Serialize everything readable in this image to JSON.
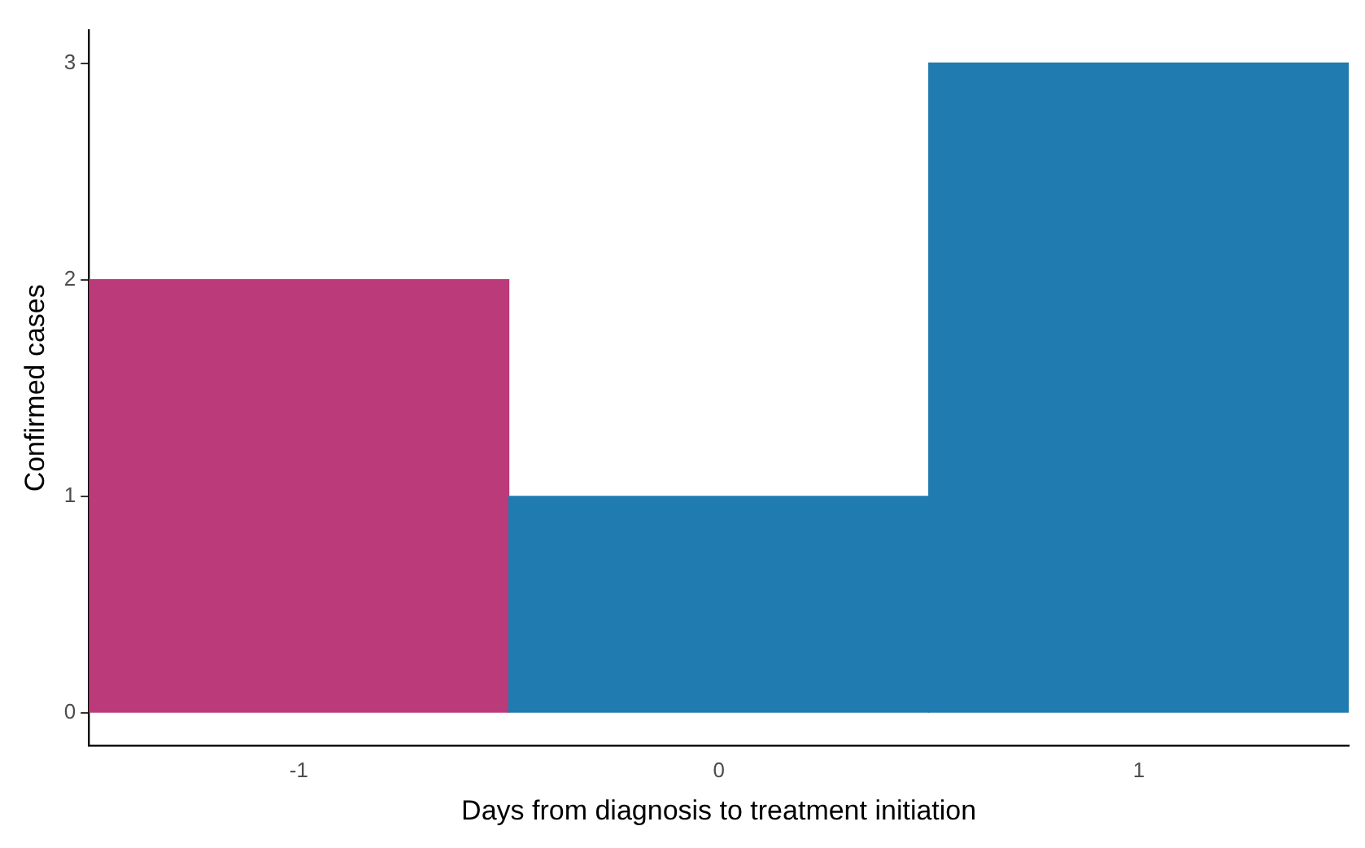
{
  "chart_data": {
    "type": "bar",
    "xlabel": "Days from diagnosis to treatment initiation",
    "ylabel": "Confirmed cases",
    "categories": [
      "-1",
      "0",
      "1"
    ],
    "values": [
      2,
      1,
      3
    ],
    "colors": [
      "#bb3b7a",
      "#1f7bb0",
      "#1f7bb0"
    ],
    "ylim": [
      -0.15,
      3.15
    ],
    "yticks": [
      0,
      1,
      2,
      3
    ],
    "grid": false,
    "legend": false
  }
}
